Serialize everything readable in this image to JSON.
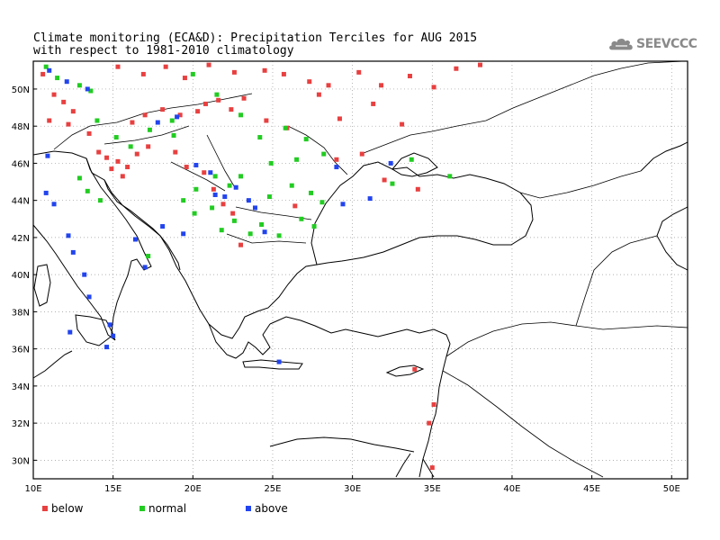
{
  "title": {
    "line1": "Climate monitoring (ECA&D): Precipitation Terciles for AUG 2015",
    "line2": "with respect to 1981-2010 climatology"
  },
  "logo": {
    "text": "SEEVCCC",
    "icon": "cloud-icon",
    "color": "#8a8a8a"
  },
  "axes": {
    "lon_ticks": [
      10,
      15,
      20,
      25,
      30,
      35,
      40,
      45,
      50
    ],
    "lon_labels": [
      "10E",
      "15E",
      "20E",
      "25E",
      "30E",
      "35E",
      "40E",
      "45E",
      "50E"
    ],
    "lat_ticks": [
      30,
      32,
      34,
      36,
      38,
      40,
      42,
      44,
      46,
      48,
      50
    ],
    "lat_labels": [
      "30N",
      "32N",
      "34N",
      "36N",
      "38N",
      "40N",
      "42N",
      "44N",
      "46N",
      "48N",
      "50N"
    ],
    "lon_range": [
      10,
      51
    ],
    "lat_range": [
      29,
      51.5
    ],
    "grid": true
  },
  "legend": [
    {
      "label": "below",
      "color": "#e84040"
    },
    {
      "label": "normal",
      "color": "#22cc22"
    },
    {
      "label": "above",
      "color": "#2244ee"
    }
  ],
  "chart_data": {
    "type": "scatter",
    "title": "Climate monitoring (ECA&D): Precipitation Terciles for AUG 2015",
    "xlim": [
      10,
      51
    ],
    "ylim": [
      29,
      51.5
    ],
    "series": [
      {
        "name": "below",
        "color": "#e84040",
        "points": [
          [
            10.6,
            50.8
          ],
          [
            11.3,
            49.7
          ],
          [
            11.9,
            49.3
          ],
          [
            12.5,
            48.8
          ],
          [
            11.0,
            48.3
          ],
          [
            12.2,
            48.1
          ],
          [
            13.5,
            47.6
          ],
          [
            14.1,
            46.6
          ],
          [
            14.6,
            46.3
          ],
          [
            15.3,
            46.1
          ],
          [
            15.9,
            45.8
          ],
          [
            16.5,
            46.5
          ],
          [
            17.2,
            46.9
          ],
          [
            14.9,
            45.7
          ],
          [
            15.6,
            45.3
          ],
          [
            16.2,
            48.2
          ],
          [
            17.0,
            48.6
          ],
          [
            18.1,
            48.9
          ],
          [
            19.2,
            48.6
          ],
          [
            20.3,
            48.8
          ],
          [
            20.8,
            49.2
          ],
          [
            21.6,
            49.4
          ],
          [
            22.4,
            48.9
          ],
          [
            15.3,
            51.2
          ],
          [
            16.9,
            50.8
          ],
          [
            18.3,
            51.2
          ],
          [
            19.5,
            50.6
          ],
          [
            21.0,
            51.3
          ],
          [
            22.6,
            50.9
          ],
          [
            24.5,
            51.0
          ],
          [
            25.7,
            50.8
          ],
          [
            27.3,
            50.4
          ],
          [
            28.5,
            50.2
          ],
          [
            30.4,
            50.9
          ],
          [
            31.8,
            50.2
          ],
          [
            33.6,
            50.7
          ],
          [
            35.1,
            50.1
          ],
          [
            36.5,
            51.1
          ],
          [
            38.0,
            51.3
          ],
          [
            27.9,
            49.7
          ],
          [
            29.2,
            48.4
          ],
          [
            31.3,
            49.2
          ],
          [
            33.1,
            48.1
          ],
          [
            24.6,
            48.3
          ],
          [
            23.2,
            49.5
          ],
          [
            25.9,
            47.9
          ],
          [
            29.0,
            46.2
          ],
          [
            30.6,
            46.5
          ],
          [
            32.0,
            45.1
          ],
          [
            34.1,
            44.6
          ],
          [
            33.9,
            34.9
          ],
          [
            35.1,
            33.0
          ],
          [
            34.8,
            32.0
          ],
          [
            35.0,
            29.6
          ],
          [
            21.3,
            44.6
          ],
          [
            21.9,
            43.8
          ],
          [
            22.5,
            43.3
          ],
          [
            20.7,
            45.5
          ],
          [
            19.6,
            45.8
          ],
          [
            18.9,
            46.6
          ],
          [
            23.0,
            41.6
          ],
          [
            26.4,
            43.7
          ]
        ]
      },
      {
        "name": "normal",
        "color": "#22cc22",
        "points": [
          [
            10.8,
            51.2
          ],
          [
            11.5,
            50.6
          ],
          [
            12.9,
            50.2
          ],
          [
            13.6,
            49.9
          ],
          [
            14.0,
            48.3
          ],
          [
            15.2,
            47.4
          ],
          [
            16.1,
            46.9
          ],
          [
            17.3,
            47.8
          ],
          [
            18.7,
            48.3
          ],
          [
            20.0,
            50.8
          ],
          [
            21.5,
            49.7
          ],
          [
            23.0,
            48.6
          ],
          [
            24.2,
            47.4
          ],
          [
            25.8,
            47.9
          ],
          [
            27.1,
            47.3
          ],
          [
            28.2,
            46.5
          ],
          [
            26.5,
            46.2
          ],
          [
            24.9,
            46.0
          ],
          [
            23.0,
            45.3
          ],
          [
            22.3,
            44.8
          ],
          [
            21.4,
            45.3
          ],
          [
            20.2,
            44.6
          ],
          [
            19.4,
            44.0
          ],
          [
            20.1,
            43.3
          ],
          [
            21.2,
            43.6
          ],
          [
            22.6,
            42.9
          ],
          [
            23.6,
            42.2
          ],
          [
            24.3,
            42.7
          ],
          [
            25.4,
            42.1
          ],
          [
            26.8,
            43.0
          ],
          [
            28.1,
            43.9
          ],
          [
            27.4,
            44.4
          ],
          [
            26.2,
            44.8
          ],
          [
            24.8,
            44.2
          ],
          [
            21.8,
            42.4
          ],
          [
            12.9,
            45.2
          ],
          [
            13.4,
            44.5
          ],
          [
            14.2,
            44.0
          ],
          [
            17.2,
            41.0
          ],
          [
            36.1,
            45.3
          ],
          [
            33.7,
            46.2
          ],
          [
            32.5,
            44.9
          ],
          [
            27.6,
            42.6
          ],
          [
            18.8,
            47.5
          ]
        ]
      },
      {
        "name": "above",
        "color": "#2244ee",
        "points": [
          [
            11.0,
            51.0
          ],
          [
            12.1,
            50.4
          ],
          [
            13.4,
            50.0
          ],
          [
            10.9,
            46.4
          ],
          [
            10.8,
            44.4
          ],
          [
            11.3,
            43.8
          ],
          [
            12.2,
            42.1
          ],
          [
            12.5,
            41.2
          ],
          [
            13.2,
            40.0
          ],
          [
            13.5,
            38.8
          ],
          [
            12.3,
            36.9
          ],
          [
            14.8,
            37.3
          ],
          [
            15.0,
            36.7
          ],
          [
            14.6,
            36.1
          ],
          [
            16.4,
            41.9
          ],
          [
            17.0,
            40.4
          ],
          [
            18.1,
            42.6
          ],
          [
            19.4,
            42.2
          ],
          [
            20.2,
            45.9
          ],
          [
            21.1,
            45.5
          ],
          [
            21.4,
            44.3
          ],
          [
            22.0,
            44.2
          ],
          [
            23.9,
            43.6
          ],
          [
            24.5,
            42.3
          ],
          [
            22.7,
            44.7
          ],
          [
            23.5,
            44.0
          ],
          [
            17.8,
            48.2
          ],
          [
            19.0,
            48.5
          ],
          [
            25.4,
            35.3
          ],
          [
            29.0,
            45.8
          ],
          [
            31.1,
            44.1
          ],
          [
            32.4,
            46.0
          ],
          [
            29.4,
            43.8
          ]
        ]
      }
    ]
  }
}
